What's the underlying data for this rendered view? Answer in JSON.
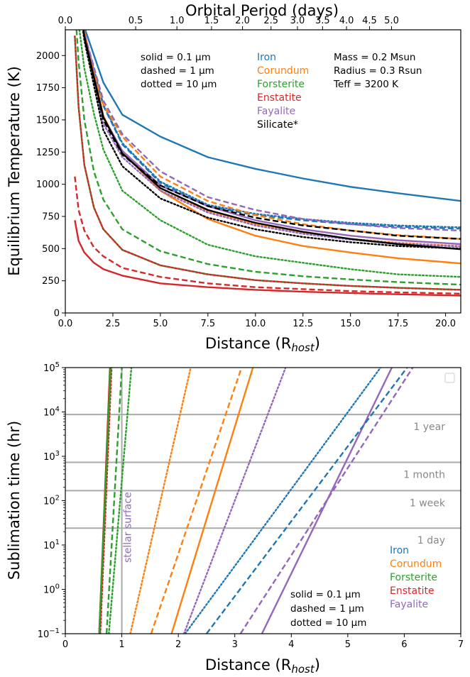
{
  "colors": {
    "Iron": "#1f77b4",
    "Corundum": "#ff7f0e",
    "Forsterite": "#2ca02c",
    "Enstatite": "#d62728",
    "Fayalite": "#9467bd",
    "Silicate*": "#000000",
    "hline": "#aaaaaa",
    "stellar": "#9467bd"
  },
  "chart_data": [
    {
      "type": "line",
      "xlabel": "Distance (R",
      "xlabel_sub": "host",
      "xlabel_close": ")",
      "ylabel": "Equilibrium Temperature (K)",
      "top_xlabel": "Orbital Period (days)",
      "xlim": [
        0,
        20.8
      ],
      "ylim": [
        0,
        2200
      ],
      "xticks": [
        "0.0",
        "2.5",
        "5.0",
        "7.5",
        "10.0",
        "12.5",
        "15.0",
        "17.5",
        "20.0"
      ],
      "yticks": [
        "0",
        "250",
        "500",
        "750",
        "1000",
        "1250",
        "1500",
        "1750",
        "2000"
      ],
      "top_ticks": [
        {
          "label": "0.0",
          "x": 0.0
        },
        {
          "label": "0.5",
          "x": 3.7
        },
        {
          "label": "1.0",
          "x": 5.87
        },
        {
          "label": "1.5",
          "x": 7.69
        },
        {
          "label": "2.0",
          "x": 9.32
        },
        {
          "label": "2.5",
          "x": 10.82
        },
        {
          "label": "3.0",
          "x": 12.21
        },
        {
          "label": "3.5",
          "x": 13.53
        },
        {
          "label": "4.0",
          "x": 14.79
        },
        {
          "label": "4.5",
          "x": 16.0
        },
        {
          "label": "5.0",
          "x": 17.16
        }
      ],
      "style_note": [
        "solid = 0.1 μm",
        "dashed = 1 μm",
        "dotted = 10 μm"
      ],
      "legend": [
        "Iron",
        "Corundum",
        "Forsterite",
        "Enstatite",
        "Fayalite",
        "Silicate*"
      ],
      "star_params": [
        "Mass = 0.2 Msun",
        "Radius = 0.3 Rsun",
        "Teff = 3200 K"
      ],
      "series": [
        {
          "name": "Iron",
          "style": "solid",
          "x": [
            0.5,
            1,
            2,
            3,
            5,
            7.5,
            10,
            12.5,
            15,
            17.5,
            20.8
          ],
          "y": [
            3600,
            2220,
            1790,
            1540,
            1370,
            1210,
            1120,
            1045,
            980,
            930,
            870
          ]
        },
        {
          "name": "Iron",
          "style": "dashed",
          "x": [
            0.5,
            1,
            2,
            3,
            5,
            7.5,
            10,
            12.5,
            15,
            17.5,
            20.8
          ],
          "y": [
            2780,
            2150,
            1610,
            1310,
            1010,
            830,
            760,
            720,
            690,
            670,
            655
          ]
        },
        {
          "name": "Iron",
          "style": "dotted",
          "x": [
            0.5,
            1,
            2,
            3,
            5,
            7.5,
            10,
            12.5,
            15,
            17.5,
            20.8
          ],
          "y": [
            2800,
            2170,
            1620,
            1320,
            1020,
            840,
            770,
            730,
            700,
            680,
            665
          ]
        },
        {
          "name": "Corundum",
          "style": "solid",
          "x": [
            0.5,
            1,
            2,
            3,
            5,
            7.5,
            10,
            12.5,
            15,
            17.5,
            20.8
          ],
          "y": [
            3000,
            2190,
            1530,
            1250,
            950,
            730,
            600,
            520,
            470,
            425,
            385
          ]
        },
        {
          "name": "Corundum",
          "style": "dashed",
          "x": [
            0.5,
            1,
            2,
            3,
            5,
            7.5,
            10,
            12.5,
            15,
            17.5,
            20.8
          ],
          "y": [
            2750,
            2160,
            1620,
            1370,
            1060,
            870,
            760,
            690,
            640,
            605,
            575
          ]
        },
        {
          "name": "Corundum",
          "style": "dotted",
          "x": [
            0.5,
            1,
            2,
            3,
            5,
            7.5,
            10,
            12.5,
            15,
            17.5,
            20.8
          ],
          "y": [
            2700,
            2140,
            1530,
            1250,
            970,
            790,
            690,
            620,
            575,
            545,
            520
          ]
        },
        {
          "name": "Fayalite",
          "style": "solid",
          "x": [
            0.5,
            1,
            2,
            3,
            5,
            7.5,
            10,
            12.5,
            15,
            17.5,
            20.8
          ],
          "y": [
            2700,
            2150,
            1520,
            1260,
            990,
            830,
            720,
            650,
            600,
            565,
            535
          ]
        },
        {
          "name": "Fayalite",
          "style": "dashed",
          "x": [
            0.5,
            1,
            2,
            3,
            5,
            7.5,
            10,
            12.5,
            15,
            17.5,
            20.8
          ],
          "y": [
            2750,
            2170,
            1650,
            1390,
            1100,
            900,
            800,
            730,
            690,
            660,
            640
          ]
        },
        {
          "name": "Fayalite",
          "style": "dotted",
          "x": [
            0.5,
            1,
            2,
            3,
            5,
            7.5,
            10,
            12.5,
            15,
            17.5,
            20.8
          ],
          "y": [
            2650,
            2130,
            1470,
            1210,
            950,
            780,
            680,
            615,
            570,
            540,
            515
          ]
        },
        {
          "name": "Silicate*",
          "style": "solid",
          "x": [
            0.5,
            1,
            2,
            3,
            5,
            7.5,
            10,
            12.5,
            15,
            17.5,
            20.8
          ],
          "y": [
            2700,
            2150,
            1520,
            1240,
            970,
            800,
            700,
            630,
            575,
            535,
            495
          ]
        },
        {
          "name": "Silicate*",
          "style": "dashed",
          "x": [
            0.5,
            1,
            2,
            3,
            5,
            7.5,
            10,
            12.5,
            15,
            17.5,
            20.8
          ],
          "y": [
            2650,
            2140,
            1500,
            1230,
            990,
            830,
            740,
            680,
            640,
            600,
            575
          ]
        },
        {
          "name": "Silicate*",
          "style": "dotted",
          "x": [
            0.5,
            1,
            2,
            3,
            5,
            7.5,
            10,
            12.5,
            15,
            17.5,
            20.8
          ],
          "y": [
            2650,
            2120,
            1420,
            1140,
            890,
            740,
            650,
            590,
            550,
            520,
            500
          ]
        },
        {
          "name": "Forsterite",
          "style": "solid",
          "x": [
            0.5,
            0.7,
            1,
            1.5,
            2,
            3,
            5,
            7.5,
            10,
            12.5,
            15,
            17.5,
            20.8
          ],
          "y": [
            2150,
            1600,
            1150,
            820,
            650,
            490,
            370,
            300,
            255,
            230,
            210,
            195,
            180
          ]
        },
        {
          "name": "Forsterite",
          "style": "dashed",
          "x": [
            0.5,
            0.7,
            1,
            1.5,
            2,
            3,
            5,
            7.5,
            10,
            12.5,
            15,
            17.5,
            20.8
          ],
          "y": [
            2400,
            1950,
            1500,
            1100,
            880,
            650,
            480,
            380,
            320,
            285,
            260,
            240,
            220
          ]
        },
        {
          "name": "Forsterite",
          "style": "dotted",
          "x": [
            0.5,
            0.7,
            1,
            1.5,
            2,
            3,
            5,
            7.5,
            10,
            12.5,
            15,
            17.5,
            20.8
          ],
          "y": [
            2500,
            2250,
            1900,
            1550,
            1270,
            950,
            720,
            530,
            440,
            390,
            340,
            300,
            280
          ]
        },
        {
          "name": "Enstatite",
          "style": "solid",
          "x": [
            0.5,
            0.7,
            1,
            1.5,
            2,
            3,
            5,
            7.5,
            10,
            12.5,
            15,
            17.5,
            20.8
          ],
          "y": [
            720,
            560,
            470,
            390,
            340,
            290,
            230,
            200,
            180,
            165,
            155,
            145,
            135
          ]
        },
        {
          "name": "Enstatite",
          "style": "dashed",
          "x": [
            0.5,
            0.7,
            1,
            1.5,
            2,
            3,
            5,
            7.5,
            10,
            12.5,
            15,
            17.5,
            20.8
          ],
          "y": [
            1060,
            800,
            640,
            510,
            440,
            350,
            280,
            230,
            200,
            185,
            170,
            160,
            150
          ]
        },
        {
          "name": "Enstatite",
          "style": "dotted",
          "x": [
            0.5,
            0.7,
            1,
            1.5,
            2,
            3,
            5,
            7.5,
            10,
            12.5,
            15,
            17.5,
            20.8
          ],
          "y": [
            2150,
            1600,
            1150,
            820,
            650,
            490,
            370,
            300,
            255,
            230,
            210,
            195,
            180
          ]
        }
      ]
    },
    {
      "type": "line",
      "yscale": "log",
      "xlabel": "Distance (R",
      "xlabel_sub": "host",
      "xlabel_close": ")",
      "ylabel": "Sublimation time (hr)",
      "xlim": [
        0,
        7
      ],
      "ylim": [
        0.1,
        100000
      ],
      "xticks": [
        "0",
        "1",
        "2",
        "3",
        "4",
        "5",
        "6",
        "7"
      ],
      "yticks": [
        {
          "base": "10",
          "exp": "−1",
          "v": 0.1
        },
        {
          "base": "10",
          "exp": "0",
          "v": 1
        },
        {
          "base": "10",
          "exp": "1",
          "v": 10
        },
        {
          "base": "10",
          "exp": "2",
          "v": 100
        },
        {
          "base": "10",
          "exp": "3",
          "v": 1000
        },
        {
          "base": "10",
          "exp": "4",
          "v": 10000
        },
        {
          "base": "10",
          "exp": "5",
          "v": 100000
        }
      ],
      "hlines": [
        {
          "label": "1 year",
          "value": 8760
        },
        {
          "label": "1 month",
          "value": 730
        },
        {
          "label": "1 week",
          "value": 168
        },
        {
          "label": "1 day",
          "value": 24
        }
      ],
      "vline": {
        "label": "stellar surface",
        "x": 1.0
      },
      "style_note": [
        "solid = 0.1 μm",
        "dashed = 1 μm",
        "dotted = 10 μm"
      ],
      "legend": [
        "Iron",
        "Corundum",
        "Forsterite",
        "Enstatite",
        "Fayalite"
      ],
      "series": [
        {
          "name": "Enstatite",
          "style": "solid",
          "x": [
            0.6,
            0.79
          ],
          "y": [
            0.1,
            100000
          ]
        },
        {
          "name": "Enstatite",
          "style": "dashed",
          "x": [
            0.61,
            0.8
          ],
          "y": [
            0.1,
            100000
          ]
        },
        {
          "name": "Enstatite",
          "style": "dotted",
          "x": [
            0.62,
            0.82
          ],
          "y": [
            0.1,
            100000
          ]
        },
        {
          "name": "Forsterite",
          "style": "solid",
          "x": [
            0.6,
            0.8
          ],
          "y": [
            0.1,
            100000
          ]
        },
        {
          "name": "Forsterite",
          "style": "dashed",
          "x": [
            0.73,
            1.0
          ],
          "y": [
            0.1,
            100000
          ]
        },
        {
          "name": "Forsterite",
          "style": "dotted",
          "x": [
            0.77,
            1.17
          ],
          "y": [
            0.1,
            100000
          ]
        },
        {
          "name": "Corundum",
          "style": "dotted",
          "x": [
            1.15,
            2.22
          ],
          "y": [
            0.1,
            100000
          ]
        },
        {
          "name": "Corundum",
          "style": "dashed",
          "x": [
            1.52,
            3.12
          ],
          "y": [
            0.1,
            100000
          ]
        },
        {
          "name": "Corundum",
          "style": "solid",
          "x": [
            1.88,
            3.32
          ],
          "y": [
            0.1,
            100000
          ]
        },
        {
          "name": "Fayalite",
          "style": "dotted",
          "x": [
            2.1,
            3.9
          ],
          "y": [
            0.1,
            100000
          ]
        },
        {
          "name": "Fayalite",
          "style": "dashed",
          "x": [
            3.1,
            6.15
          ],
          "y": [
            0.1,
            100000
          ]
        },
        {
          "name": "Fayalite",
          "style": "solid",
          "x": [
            3.48,
            5.78
          ],
          "y": [
            0.1,
            100000
          ]
        },
        {
          "name": "Iron",
          "style": "dotted",
          "x": [
            2.12,
            5.58
          ],
          "y": [
            0.1,
            100000
          ]
        },
        {
          "name": "Iron",
          "style": "dashed",
          "x": [
            2.5,
            6.05
          ],
          "y": [
            0.1,
            100000
          ]
        }
      ]
    }
  ]
}
